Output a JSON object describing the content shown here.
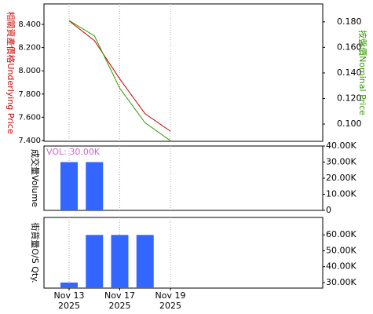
{
  "chart_data": [
    {
      "type": "line",
      "series": [
        {
          "name": "相關資產價格Underlying Price",
          "color": "#cc0000",
          "axis": "y",
          "values": [
            8.43,
            8.26,
            7.93,
            7.63,
            7.48
          ]
        },
        {
          "name": "按盤價Nominal Price",
          "color": "#339900",
          "axis": "y2",
          "values": [
            0.181,
            0.169,
            0.128,
            0.101,
            0.087
          ]
        }
      ],
      "ylim": [
        7.393,
        8.576
      ],
      "yticks": [
        {
          "value": 7.4,
          "label": "7.400"
        },
        {
          "value": 7.6,
          "label": "7.600"
        },
        {
          "value": 7.8,
          "label": "7.800"
        },
        {
          "value": 8.0,
          "label": "8.000"
        },
        {
          "value": 8.2,
          "label": "8.200"
        },
        {
          "value": 8.4,
          "label": "8.400"
        }
      ],
      "y2lim": [
        0.0865,
        0.194
      ],
      "y2ticks": [
        {
          "value": 0.1,
          "label": "0.100"
        },
        {
          "value": 0.12,
          "label": "0.120"
        },
        {
          "value": 0.14,
          "label": "0.140"
        },
        {
          "value": 0.16,
          "label": "0.160"
        },
        {
          "value": 0.18,
          "label": "0.180"
        }
      ]
    },
    {
      "type": "bar",
      "ylabel": "成交量Volume",
      "annotation": "VOL: 30.00K",
      "color": "#3366ff",
      "values": [
        30000,
        30000,
        null,
        null,
        null
      ],
      "ylim": [
        0,
        40000
      ],
      "yticks": [
        {
          "value": 0,
          "label": "0"
        },
        {
          "value": 10000,
          "label": "10.00K"
        },
        {
          "value": 20000,
          "label": "20.00K"
        },
        {
          "value": 30000,
          "label": "30.00K"
        },
        {
          "value": 40000,
          "label": "40.00K"
        }
      ]
    },
    {
      "type": "bar",
      "ylabel": "街貨量O/S Qty.",
      "color": "#3366ff",
      "categories": [
        "Nov 13",
        null,
        "Nov 17",
        null,
        "Nov 19"
      ],
      "category_years": [
        "2025",
        null,
        "2025",
        null,
        "2025"
      ],
      "values": [
        30000,
        60000,
        60000,
        60000,
        null
      ],
      "ylim": [
        26500,
        71000
      ],
      "yticks": [
        {
          "value": 30000,
          "label": "30.00K"
        },
        {
          "value": 40000,
          "label": "40.00K"
        },
        {
          "value": 50000,
          "label": "50.00K"
        },
        {
          "value": 60000,
          "label": "60.00K"
        }
      ]
    }
  ]
}
